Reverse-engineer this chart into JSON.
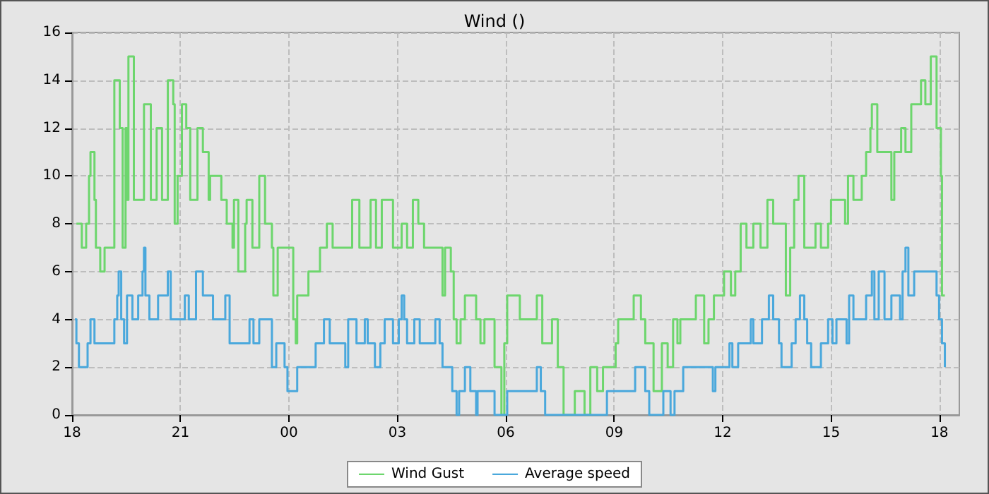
{
  "chart_data": {
    "type": "step",
    "title": "Wind ()",
    "xlim": [
      18,
      42.55
    ],
    "ylim": [
      0,
      16
    ],
    "xticks": [
      {
        "value": 18,
        "label": "18"
      },
      {
        "value": 21,
        "label": "21"
      },
      {
        "value": 24,
        "label": "00"
      },
      {
        "value": 27,
        "label": "03"
      },
      {
        "value": 30,
        "label": "06"
      },
      {
        "value": 33,
        "label": "09"
      },
      {
        "value": 36,
        "label": "12"
      },
      {
        "value": 39,
        "label": "15"
      },
      {
        "value": 42,
        "label": "18"
      }
    ],
    "yticks": [
      0,
      2,
      4,
      6,
      8,
      10,
      12,
      14,
      16
    ],
    "grid": true,
    "legend": "bottom",
    "line_style": "solid",
    "marker": "none",
    "series": [
      {
        "name": "Wind Gust",
        "color": "#6dd66d",
        "x": [
          18.12,
          18.27,
          18.39,
          18.47,
          18.51,
          18.62,
          18.66,
          18.78,
          18.9,
          19.17,
          19.32,
          19.4,
          19.48,
          19.52,
          19.56,
          19.71,
          19.99,
          20.18,
          20.34,
          20.49,
          20.65,
          20.8,
          20.84,
          20.92,
          21.04,
          21.16,
          21.27,
          21.47,
          21.62,
          21.78,
          21.82,
          22.13,
          22.28,
          22.44,
          22.48,
          22.6,
          22.79,
          22.83,
          22.99,
          23.18,
          23.34,
          23.53,
          23.57,
          23.69,
          24.12,
          24.19,
          24.23,
          24.54,
          24.86,
          25.05,
          25.21,
          25.75,
          25.95,
          26.26,
          26.41,
          26.57,
          26.88,
          27.12,
          27.27,
          27.43,
          27.58,
          27.74,
          28.25,
          28.32,
          28.48,
          28.56,
          28.64,
          28.75,
          28.87,
          29.18,
          29.3,
          29.41,
          29.69,
          29.88,
          29.96,
          30.04,
          30.39,
          30.86,
          31.01,
          31.28,
          31.44,
          31.6,
          31.91,
          32.18,
          32.34,
          32.53,
          32.69,
          33.04,
          33.11,
          33.54,
          33.74,
          33.86,
          34.09,
          34.32,
          34.48,
          34.63,
          34.75,
          34.83,
          35.26,
          35.49,
          35.61,
          35.76,
          36.04,
          36.23,
          36.35,
          36.5,
          36.66,
          36.85,
          37.05,
          37.24,
          37.4,
          37.75,
          37.87,
          37.98,
          38.1,
          38.26,
          38.57,
          38.72,
          38.92,
          39.0,
          39.39,
          39.47,
          39.62,
          39.85,
          39.97,
          40.09,
          40.13,
          40.28,
          40.67,
          40.75,
          40.94,
          41.06,
          41.22,
          41.49,
          41.61,
          41.76,
          41.92,
          42.04,
          42.07,
          42.15
        ],
        "values": [
          8,
          7,
          8,
          10,
          11,
          9,
          7,
          6,
          7,
          14,
          12,
          7,
          12,
          9,
          15,
          9,
          13,
          9,
          12,
          9,
          14,
          13,
          8,
          10,
          13,
          12,
          9,
          12,
          11,
          9,
          10,
          9,
          8,
          7,
          9,
          6,
          8,
          9,
          7,
          10,
          8,
          7,
          5,
          7,
          4,
          3,
          5,
          6,
          7,
          8,
          7,
          9,
          7,
          9,
          7,
          9,
          7,
          8,
          7,
          9,
          8,
          7,
          5,
          7,
          6,
          4,
          3,
          4,
          5,
          4,
          3,
          4,
          2,
          0,
          3,
          5,
          4,
          5,
          3,
          4,
          2,
          0,
          1,
          0,
          2,
          1,
          2,
          3,
          4,
          5,
          4,
          3,
          1,
          3,
          2,
          4,
          3,
          4,
          5,
          3,
          4,
          5,
          6,
          5,
          6,
          8,
          7,
          8,
          7,
          9,
          8,
          5,
          7,
          9,
          10,
          7,
          8,
          7,
          8,
          9,
          8,
          10,
          9,
          10,
          11,
          12,
          13,
          11,
          9,
          11,
          12,
          11,
          13,
          14,
          13,
          15,
          12,
          10,
          5,
          5
        ]
      },
      {
        "name": "Average speed",
        "color": "#4aa8dc",
        "x": [
          18.08,
          18.12,
          18.19,
          18.43,
          18.51,
          18.62,
          19.17,
          19.25,
          19.29,
          19.36,
          19.44,
          19.52,
          19.67,
          19.83,
          19.95,
          19.99,
          20.03,
          20.14,
          20.38,
          20.65,
          20.73,
          21.12,
          21.23,
          21.43,
          21.62,
          21.9,
          22.24,
          22.36,
          22.91,
          23.02,
          23.18,
          23.53,
          23.65,
          23.88,
          23.96,
          24.23,
          24.74,
          24.97,
          25.13,
          25.56,
          25.64,
          25.87,
          26.1,
          26.18,
          26.38,
          26.53,
          26.65,
          26.88,
          27.04,
          27.12,
          27.19,
          27.27,
          27.47,
          27.62,
          28.05,
          28.17,
          28.25,
          28.52,
          28.64,
          28.71,
          28.87,
          29.02,
          29.18,
          29.22,
          29.69,
          30.04,
          30.86,
          30.97,
          31.09,
          32.8,
          33.58,
          33.86,
          33.97,
          34.36,
          34.56,
          34.67,
          34.91,
          35.73,
          35.8,
          36.19,
          36.27,
          36.43,
          36.78,
          36.85,
          37.09,
          37.28,
          37.4,
          37.56,
          37.63,
          37.91,
          38.02,
          38.14,
          38.26,
          38.34,
          38.45,
          38.72,
          38.92,
          39.04,
          39.15,
          39.43,
          39.5,
          39.62,
          39.97,
          40.13,
          40.2,
          40.32,
          40.48,
          40.67,
          40.91,
          40.98,
          41.06,
          41.14,
          41.3,
          41.92,
          41.99,
          42.07,
          42.15
        ],
        "values": [
          4,
          3,
          2,
          3,
          4,
          3,
          4,
          5,
          6,
          4,
          3,
          5,
          4,
          5,
          6,
          7,
          5,
          4,
          5,
          6,
          4,
          5,
          4,
          6,
          5,
          4,
          5,
          3,
          4,
          3,
          4,
          2,
          3,
          2,
          1,
          2,
          3,
          4,
          3,
          2,
          4,
          3,
          4,
          3,
          2,
          3,
          4,
          3,
          4,
          5,
          4,
          3,
          4,
          3,
          4,
          3,
          2,
          1,
          0,
          1,
          2,
          1,
          0,
          1,
          0,
          1,
          2,
          1,
          0,
          1,
          2,
          1,
          0,
          1,
          0,
          1,
          2,
          1,
          2,
          3,
          2,
          3,
          4,
          3,
          4,
          5,
          4,
          3,
          2,
          3,
          4,
          5,
          4,
          3,
          2,
          3,
          4,
          3,
          4,
          3,
          5,
          4,
          5,
          6,
          4,
          6,
          4,
          5,
          4,
          6,
          7,
          5,
          6,
          5,
          4,
          3,
          2
        ]
      }
    ]
  }
}
